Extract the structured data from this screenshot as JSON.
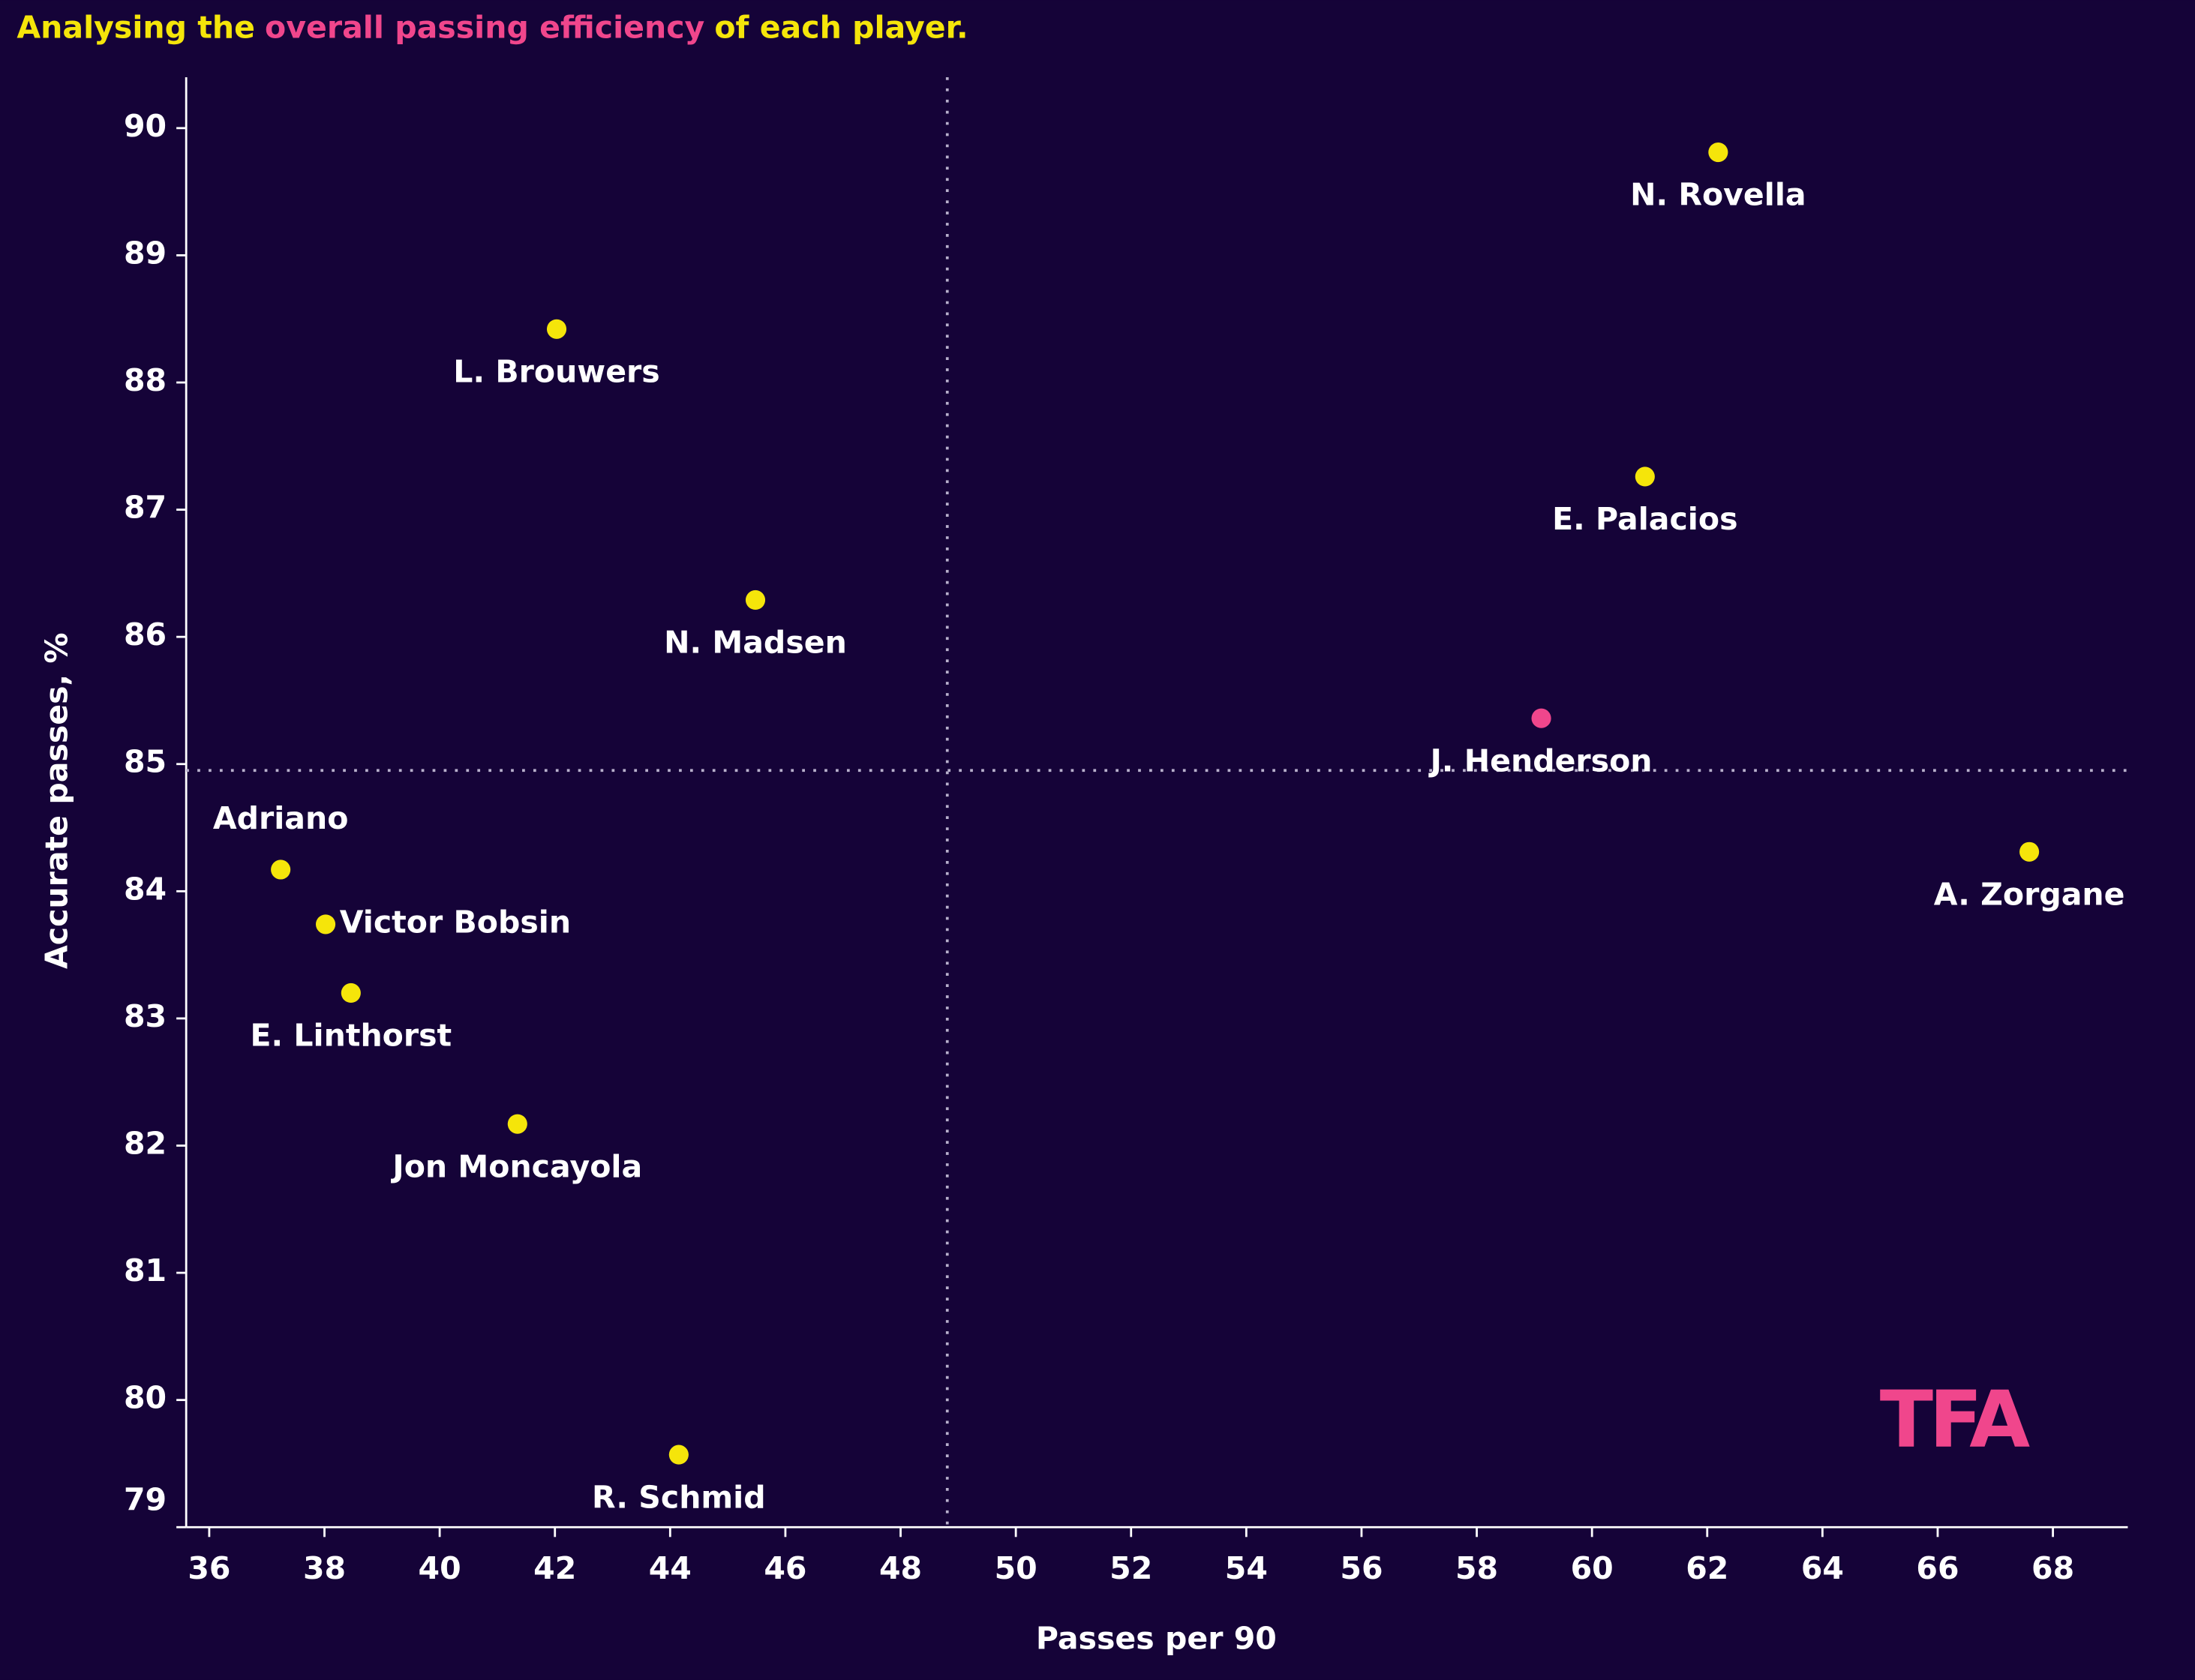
{
  "chart_data": {
    "type": "scatter",
    "title_parts": [
      {
        "text": "Analysing the",
        "color": "#f5e50a"
      },
      {
        "text": "overall passing efficiency",
        "color": "#f0468c"
      },
      {
        "text": "of each player.",
        "color": "#f5e50a"
      }
    ],
    "x_label": "Passes per 90",
    "y_label": "Accurate passes, %",
    "watermark": "TFA",
    "watermark_color": "#f0468c",
    "point_labels": [
      "N. Rovella",
      "L. Brouwers",
      "E. Palacios",
      "N. Madsen",
      "J. Henderson",
      "Adriano",
      "Victor Bobsin",
      "E. Linthorst",
      "Jon Moncayola",
      "R. Schmid",
      "A. Zorgane"
    ],
    "x": [
      62.19,
      42.03,
      60.92,
      45.48,
      59.12,
      37.24,
      38.02,
      38.46,
      41.35,
      44.15,
      67.59
    ],
    "values": [
      89.81,
      88.42,
      87.26,
      86.29,
      85.36,
      84.17,
      83.74,
      83.2,
      82.17,
      79.57,
      84.31
    ],
    "point_colors": [
      "#f5e50a",
      "#f5e50a",
      "#f5e50a",
      "#f5e50a",
      "#f0468c",
      "#f5e50a",
      "#f5e50a",
      "#f5e50a",
      "#f5e50a",
      "#f5e50a",
      "#f5e50a"
    ],
    "x_reference": 48.81,
    "y_reference": 84.95,
    "xlim": [
      35.6,
      69.3
    ],
    "ylim": [
      79,
      90.4
    ],
    "xticks": [
      36,
      38,
      40,
      42,
      44,
      46,
      48,
      50,
      52,
      54,
      56,
      58,
      60,
      62,
      64,
      66,
      68
    ],
    "yticks": [
      79,
      80,
      81,
      82,
      83,
      84,
      85,
      86,
      87,
      88,
      89,
      90
    ]
  }
}
